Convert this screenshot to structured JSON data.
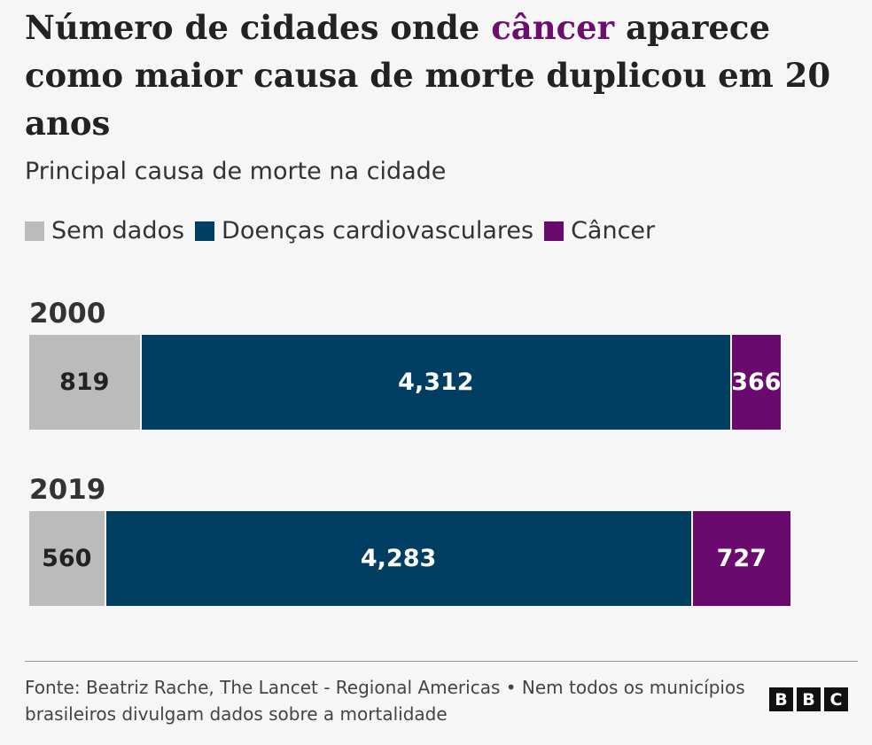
{
  "chart_data": {
    "type": "stacked-bar-horizontal",
    "title": [
      {
        "text": "Número de cidades onde"
      },
      {
        "text": "câncer",
        "color": "#6b0f6e"
      },
      {
        "text": "aparece como maior causa de morte duplicou em 20 anos"
      }
    ],
    "subtitle": "Principal causa de morte na cidade",
    "categories": [
      "2000",
      "2019"
    ],
    "series": [
      {
        "name": "Sem dados",
        "color": "#bbbbbb",
        "label_color": "#222222",
        "values": [
          819,
          560
        ],
        "value_labels": [
          "819",
          "560"
        ]
      },
      {
        "name": "Doenças cardiovasculares",
        "color": "#003f62",
        "label_color": "#ffffff",
        "values": [
          4312,
          4283
        ],
        "value_labels": [
          "4,312",
          "4,283"
        ]
      },
      {
        "name": "Câncer",
        "color": "#6b0a6e",
        "label_color": "#ffffff",
        "values": [
          366,
          727
        ],
        "value_labels": [
          "366",
          "727"
        ]
      }
    ],
    "source": "Fonte: Beatriz Rache, The Lancet - Regional Americas • Nem todos os municípios brasileiros divulgam dados sobre a mortalidade",
    "logo": [
      "B",
      "B",
      "C"
    ]
  }
}
